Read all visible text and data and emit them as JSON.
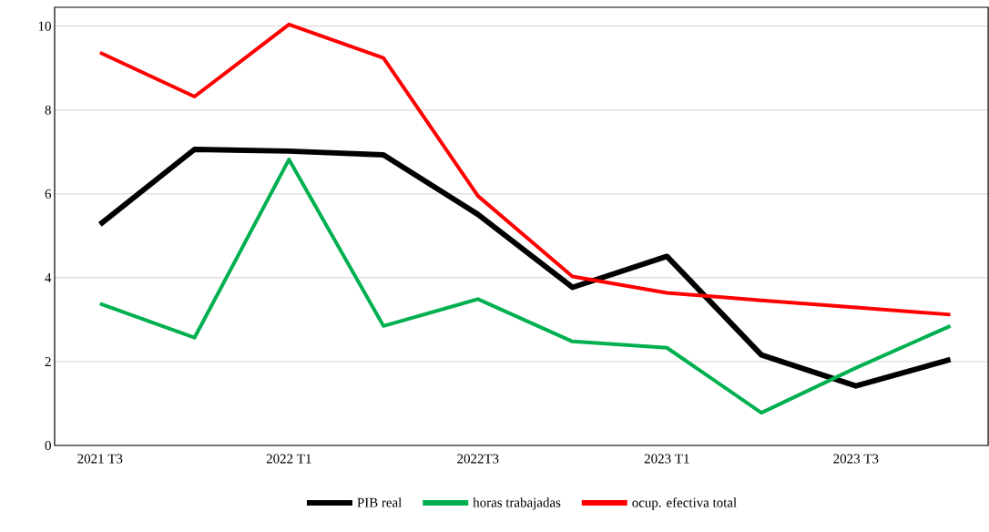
{
  "chart_data": {
    "type": "line",
    "categories": [
      "2021 T3",
      null,
      "2022 T1",
      null,
      "2022T3",
      null,
      "2023 T1",
      null,
      "2023 T3",
      null
    ],
    "series": [
      {
        "name": "PIB real",
        "color": "#000000",
        "values": [
          5.27,
          7.06,
          7.02,
          6.93,
          5.51,
          3.77,
          4.51,
          2.16,
          1.42,
          2.05
        ]
      },
      {
        "name": "horas trabajadas",
        "color": "#00b050",
        "values": [
          3.38,
          2.57,
          6.82,
          2.85,
          3.49,
          2.48,
          2.33,
          0.78,
          1.85,
          2.85
        ]
      },
      {
        "name": "ocup. efectiva total",
        "color": "#ff0000",
        "values": [
          9.37,
          8.32,
          10.04,
          9.24,
          5.95,
          4.03,
          3.64,
          3.46,
          3.29,
          3.12
        ]
      }
    ],
    "ylim": [
      0,
      10.45
    ],
    "yticks": [
      0,
      2,
      4,
      6,
      8,
      10
    ],
    "grid": "y",
    "legend": "bottom",
    "marker": "none",
    "line_style": "solid"
  }
}
